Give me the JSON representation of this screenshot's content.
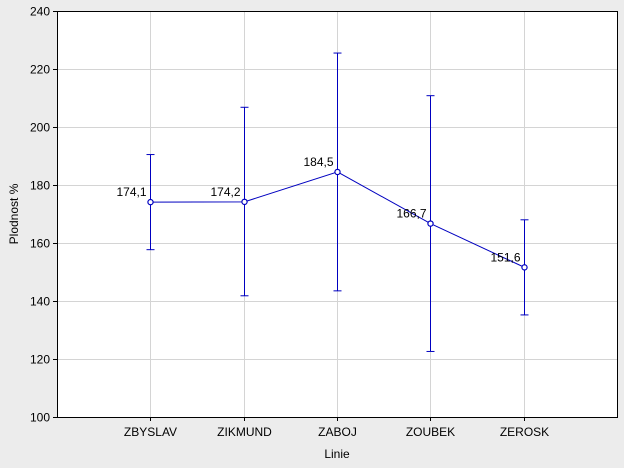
{
  "chart_data": {
    "type": "line",
    "xlabel": "Linie",
    "ylabel": "Plodnost %",
    "ylim": [
      100,
      240
    ],
    "yticks": [
      100,
      120,
      140,
      160,
      180,
      200,
      220,
      240
    ],
    "grid": true,
    "categories": [
      "ZBYSLAV",
      "ZIKMUND",
      "ZABOJ",
      "ZOUBEK",
      "ZEROSK"
    ],
    "series": [
      {
        "values": [
          174.1,
          174.2,
          184.5,
          166.7,
          151.6
        ],
        "value_labels": [
          "174,1",
          "174,2",
          "184,5",
          "166,7",
          "151,6"
        ],
        "error_low": [
          157.7,
          141.8,
          143.5,
          122.6,
          135.2
        ],
        "error_high": [
          190.5,
          206.8,
          225.5,
          210.8,
          168.0
        ],
        "color": "#0000c0"
      }
    ]
  }
}
